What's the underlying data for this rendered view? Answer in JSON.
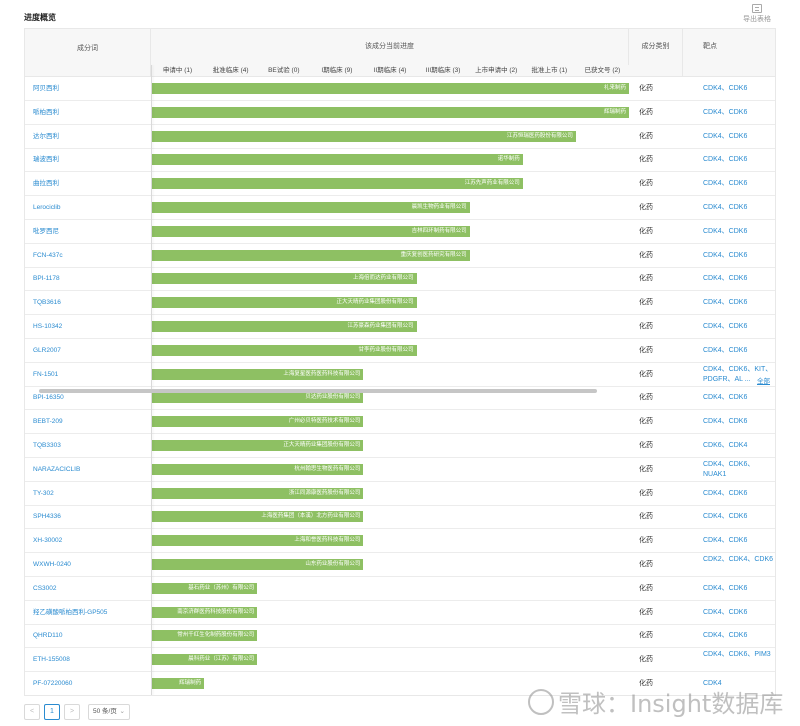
{
  "page": {
    "title": "进度概览",
    "export_label": "导出表格"
  },
  "table": {
    "headers": {
      "name": "成分词",
      "progress": "该成分当前进度",
      "category": "成分类别",
      "target": "靶点"
    },
    "stages": [
      "申请中 (1)",
      "批准临床 (4)",
      "BE试验 (0)",
      "I期临床 (9)",
      "II期临床 (4)",
      "III期临床 (3)",
      "上市申请中 (2)",
      "批准上市 (1)",
      "已获文号 (2)"
    ],
    "stage_count": 9,
    "rows": [
      {
        "name": "阿贝西利",
        "company": "礼来制药",
        "stage": 9,
        "category": "化药",
        "target": "CDK4、CDK6"
      },
      {
        "name": "哌柏西利",
        "company": "辉瑞制药",
        "stage": 9,
        "category": "化药",
        "target": "CDK4、CDK6"
      },
      {
        "name": "达尔西利",
        "company": "江苏恒瑞医药股份有限公司",
        "stage": 8,
        "category": "化药",
        "target": "CDK4、CDK6"
      },
      {
        "name": "瑞波西利",
        "company": "诺华制药",
        "stage": 7,
        "category": "化药",
        "target": "CDK4、CDK6"
      },
      {
        "name": "曲拉西利",
        "company": "江苏先声药业有限公司",
        "stage": 7,
        "category": "化药",
        "target": "CDK4、CDK6"
      },
      {
        "name": "Lerociclib",
        "company": "晨凯生物药业有限公司",
        "stage": 6,
        "category": "化药",
        "target": "CDK4、CDK6"
      },
      {
        "name": "吡罗西尼",
        "company": "吉林四环制药有限公司",
        "stage": 6,
        "category": "化药",
        "target": "CDK4、CDK6"
      },
      {
        "name": "FCN-437c",
        "company": "重庆复创医药研究有限公司",
        "stage": 6,
        "category": "化药",
        "target": "CDK4、CDK6"
      },
      {
        "name": "BPI-1178",
        "company": "上海倍而达药业有限公司",
        "stage": 5,
        "category": "化药",
        "target": "CDK4、CDK6"
      },
      {
        "name": "TQB3616",
        "company": "正大天晴药业集团股份有限公司",
        "stage": 5,
        "category": "化药",
        "target": "CDK4、CDK6"
      },
      {
        "name": "HS-10342",
        "company": "江苏豪森药业集团有限公司",
        "stage": 5,
        "category": "化药",
        "target": "CDK4、CDK6"
      },
      {
        "name": "GLR2007",
        "company": "甘李药业股份有限公司",
        "stage": 5,
        "category": "化药",
        "target": "CDK4、CDK6"
      },
      {
        "name": "FN-1501",
        "company": "上海复星医药医药科技有限公司",
        "stage": 4,
        "category": "化药",
        "target": "CDK4、CDK6、KIT、PDGFR、AL ...",
        "more": "全部"
      },
      {
        "name": "BPI-16350",
        "company": "贝达药业股份有限公司",
        "stage": 4,
        "category": "化药",
        "target": "CDK4、CDK6"
      },
      {
        "name": "BEBT-209",
        "company": "广州必贝特医药技术有限公司",
        "stage": 4,
        "category": "化药",
        "target": "CDK4、CDK6"
      },
      {
        "name": "TQB3303",
        "company": "正大天晴药业集团股份有限公司",
        "stage": 4,
        "category": "化药",
        "target": "CDK6、CDK4"
      },
      {
        "name": "NARAZACICLIB",
        "company": "杭州翰思生物医药有限公司",
        "stage": 4,
        "category": "化药",
        "target": "CDK4、CDK6、NUAK1"
      },
      {
        "name": "TY-302",
        "company": "浙江同源康医药股份有限公司",
        "stage": 4,
        "category": "化药",
        "target": "CDK4、CDK6"
      },
      {
        "name": "SPH4336",
        "company": "上海医药集团（本溪）北方药业有限公司",
        "stage": 4,
        "category": "化药",
        "target": "CDK4、CDK6"
      },
      {
        "name": "XH-30002",
        "company": "上海和誉医药科技有限公司",
        "stage": 4,
        "category": "化药",
        "target": "CDK4、CDK6"
      },
      {
        "name": "WXWH-0240",
        "company": "山东药业股份有限公司",
        "stage": 4,
        "category": "化药",
        "target": "CDK2、CDK4、CDK6"
      },
      {
        "name": "CS3002",
        "company": "基石药业（苏州）有限公司",
        "stage": 2,
        "category": "化药",
        "target": "CDK4、CDK6"
      },
      {
        "name": "羟乙磺酸哌柏西利-GP505",
        "company": "南京济群医药科技股份有限公司",
        "stage": 2,
        "category": "化药",
        "target": "CDK4、CDK6"
      },
      {
        "name": "QHRD110",
        "company": "常州千红生化制药股份有限公司",
        "stage": 2,
        "category": "化药",
        "target": "CDK4、CDK6"
      },
      {
        "name": "ETH-155008",
        "company": "晨科药业（江苏）有限公司",
        "stage": 2,
        "category": "化药",
        "target": "CDK4、CDK6、PIM3"
      },
      {
        "name": "PF-07220060",
        "company": "辉瑞制药",
        "stage": 1,
        "category": "化药",
        "target": "CDK4"
      }
    ]
  },
  "pagination": {
    "prev": "<",
    "current": "1",
    "next": ">",
    "page_size": "50 条/页"
  },
  "watermark": "雪球：Insight数据库"
}
